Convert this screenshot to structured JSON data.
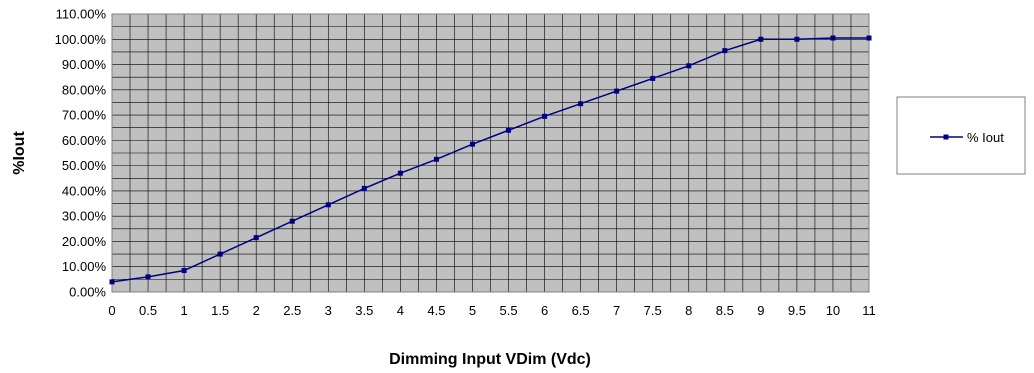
{
  "chart_data": {
    "type": "line",
    "title": "",
    "xlabel": "Dimming Input VDim (Vdc)",
    "ylabel": "%Iout",
    "xlim": [
      0,
      11
    ],
    "ylim": [
      0,
      110
    ],
    "x_ticks": [
      "0",
      "0.5",
      "1",
      "1.5",
      "2",
      "2.5",
      "3",
      "3.5",
      "4",
      "4.5",
      "5",
      "5.5",
      "6",
      "6.5",
      "7",
      "7.5",
      "8",
      "8.5",
      "9",
      "9.5",
      "10",
      "11"
    ],
    "y_ticks": [
      "0.00%",
      "10.00%",
      "20.00%",
      "30.00%",
      "40.00%",
      "50.00%",
      "60.00%",
      "70.00%",
      "80.00%",
      "90.00%",
      "100.00%",
      "110.00%"
    ],
    "grid": true,
    "plot_background": "#c0c0c0",
    "legend_position": "right",
    "series": [
      {
        "name": "% Iout",
        "color": "#000080",
        "marker": "square",
        "x": [
          "0",
          "0.5",
          "1",
          "1.5",
          "2",
          "2.5",
          "3",
          "3.5",
          "4",
          "4.5",
          "5",
          "5.5",
          "6",
          "6.5",
          "7",
          "7.5",
          "8",
          "8.5",
          "9",
          "9.5",
          "10",
          "11"
        ],
        "values": [
          4.0,
          6.0,
          8.5,
          15.0,
          21.5,
          28.0,
          34.5,
          41.0,
          47.0,
          52.5,
          58.5,
          64.0,
          69.5,
          74.5,
          79.5,
          84.5,
          89.5,
          95.5,
          100.0,
          100.0,
          100.5,
          100.5
        ]
      }
    ]
  }
}
